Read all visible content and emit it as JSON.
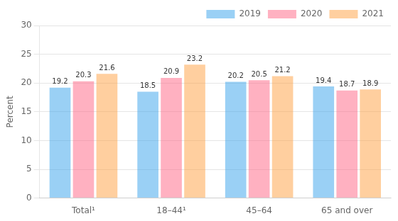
{
  "chart_data": {
    "type": "bar",
    "categories": [
      "Total¹",
      "18–44¹",
      "45–64",
      "65 and over"
    ],
    "series": [
      {
        "name": "2019",
        "values": [
          19.2,
          18.5,
          20.2,
          19.4
        ]
      },
      {
        "name": "2020",
        "values": [
          20.3,
          20.9,
          20.5,
          18.7
        ]
      },
      {
        "name": "2021",
        "values": [
          21.6,
          23.2,
          21.2,
          18.9
        ]
      }
    ],
    "ylabel": "Percent",
    "ylim": [
      0,
      30
    ],
    "yticks": [
      0,
      5,
      10,
      15,
      20,
      25,
      30
    ],
    "grid": true,
    "legend": "upper right",
    "data_labels": true
  }
}
